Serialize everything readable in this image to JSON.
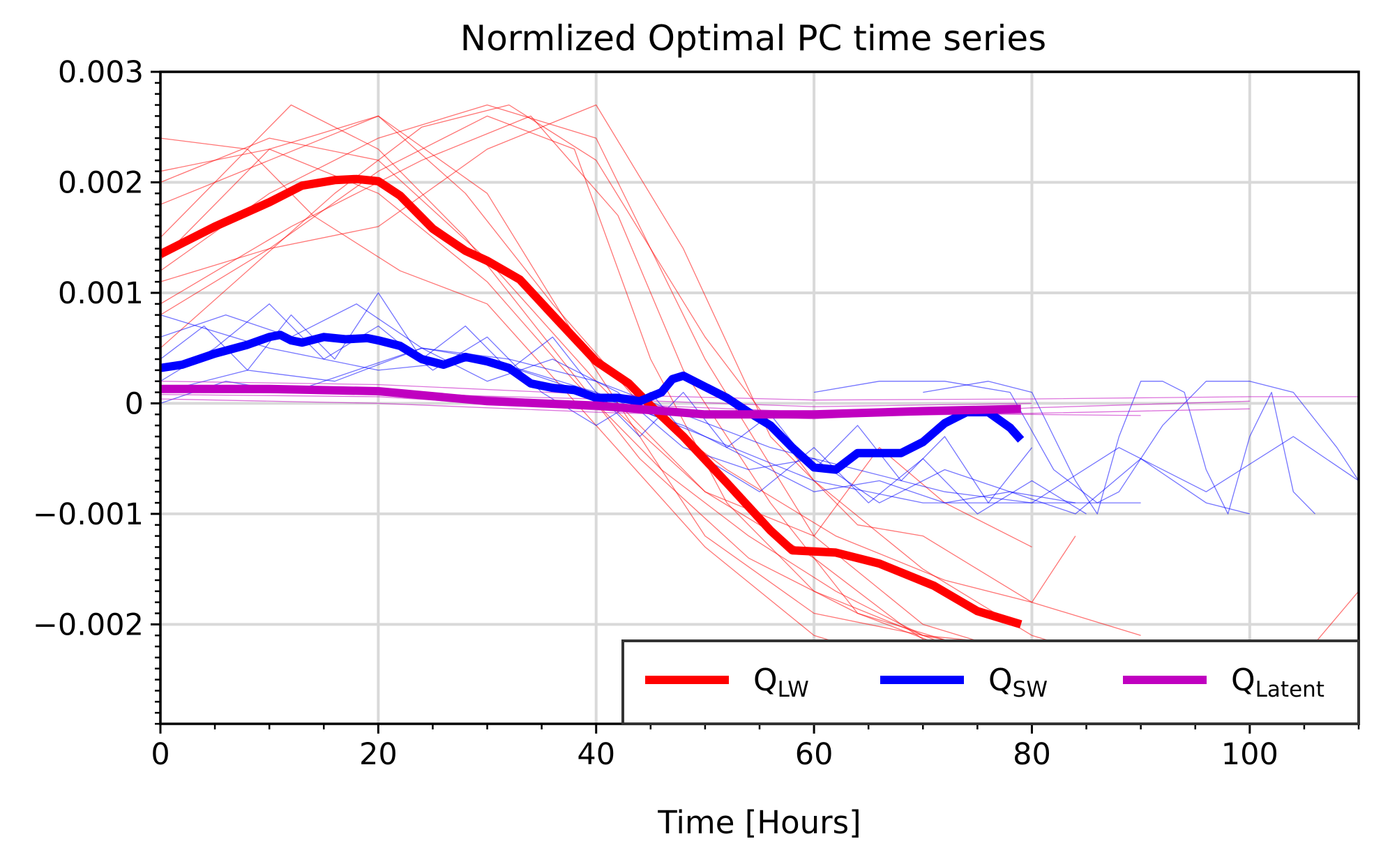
{
  "chart_data": {
    "type": "line",
    "title": "Normlized Optimal PC time series",
    "xlabel": "Time [Hours]",
    "ylabel": "",
    "xlim": [
      0,
      110
    ],
    "ylim": [
      -0.0029,
      0.003
    ],
    "xticks": [
      0,
      20,
      40,
      60,
      80,
      100
    ],
    "xtick_labels": [
      "0",
      "20",
      "40",
      "60",
      "80",
      "100"
    ],
    "yticks": [
      0.003,
      0.002,
      0.001,
      0,
      -0.001,
      -0.002
    ],
    "ytick_labels": [
      "0.003",
      "0.002",
      "0.001",
      "0",
      "−0.001",
      "−0.002"
    ],
    "grid": true,
    "legend_position": "lower-right",
    "series": [
      {
        "name": "QLW",
        "label_main": "Q",
        "label_sub": "LW",
        "color": "#ff0000",
        "x": [
          0,
          5,
          10,
          13,
          16,
          18,
          20,
          22,
          25,
          28,
          30,
          33,
          36,
          40,
          43,
          45,
          48,
          52,
          56,
          58,
          62,
          66,
          71,
          75,
          79
        ],
        "y": [
          0.00135,
          0.0016,
          0.00182,
          0.00197,
          0.00202,
          0.00203,
          0.00201,
          0.00188,
          0.00158,
          0.00138,
          0.00129,
          0.00112,
          0.0008,
          0.00038,
          0.00018,
          -2e-05,
          -0.0003,
          -0.00072,
          -0.00115,
          -0.00133,
          -0.00135,
          -0.00145,
          -0.00165,
          -0.00188,
          -0.002
        ]
      },
      {
        "name": "QSW",
        "label_main": "Q",
        "label_sub": "SW",
        "color": "#0000ff",
        "x": [
          0,
          2,
          5,
          8,
          10,
          11,
          12,
          13,
          15,
          17,
          19,
          20,
          22,
          24,
          26,
          28,
          30,
          32,
          34,
          36,
          38,
          40,
          42,
          44,
          46,
          47,
          48,
          50,
          52,
          54,
          56,
          58,
          60,
          62,
          64,
          66,
          68,
          70,
          72,
          74,
          76,
          78,
          79
        ],
        "y": [
          0.00032,
          0.00035,
          0.00045,
          0.00053,
          0.0006,
          0.00062,
          0.00057,
          0.00055,
          0.0006,
          0.00058,
          0.00059,
          0.00057,
          0.00052,
          0.0004,
          0.00035,
          0.00042,
          0.00038,
          0.00032,
          0.00018,
          0.00014,
          0.00012,
          5e-05,
          5e-05,
          2e-05,
          0.0001,
          0.00022,
          0.00025,
          0.00015,
          5e-05,
          -8e-05,
          -0.0002,
          -0.0004,
          -0.00058,
          -0.0006,
          -0.00045,
          -0.00045,
          -0.00045,
          -0.00035,
          -0.00018,
          -8e-05,
          -8e-05,
          -0.00022,
          -0.00033
        ]
      },
      {
        "name": "QLatent",
        "label_main": "Q",
        "label_sub": "Latent",
        "color": "#c000c0",
        "x": [
          0,
          10,
          20,
          30,
          40,
          50,
          60,
          70,
          79
        ],
        "y": [
          0.00013,
          0.00013,
          0.00011,
          2e-05,
          -2e-05,
          -0.0001,
          -0.0001,
          -7e-05,
          -5e-05
        ]
      }
    ],
    "ensemble_members": {
      "QLW": [
        {
          "x": [
            0,
            10,
            20,
            30,
            40,
            50,
            60,
            70,
            80
          ],
          "y": [
            0.0018,
            0.0022,
            0.0026,
            0.0019,
            0.0003,
            -0.0012,
            -0.0019,
            -0.0021,
            -0.0022
          ]
        },
        {
          "x": [
            0,
            10,
            20,
            30,
            40,
            50,
            60,
            70,
            80,
            86
          ],
          "y": [
            0.0012,
            0.0019,
            0.0024,
            0.0027,
            0.0024,
            0.0004,
            -0.0012,
            -0.002,
            -0.0023,
            -0.0023
          ]
        },
        {
          "x": [
            0,
            8,
            14,
            22,
            30,
            40,
            50,
            60,
            70,
            78
          ],
          "y": [
            0.0024,
            0.0023,
            0.0017,
            0.0012,
            0.0009,
            -0.0002,
            -0.0013,
            -0.0021,
            -0.0024,
            -0.0025
          ]
        },
        {
          "x": [
            0,
            10,
            20,
            30,
            38,
            45,
            52,
            60,
            70,
            80,
            90
          ],
          "y": [
            0.0008,
            0.0014,
            0.0021,
            0.0026,
            0.0023,
            0.0004,
            -0.0009,
            -0.0017,
            -0.0021,
            -0.0023,
            -0.0024
          ]
        },
        {
          "x": [
            0,
            6,
            12,
            20,
            28,
            36,
            44,
            54,
            64,
            74,
            82
          ],
          "y": [
            0.0015,
            0.0021,
            0.0027,
            0.0023,
            0.0015,
            0.0005,
            -0.0005,
            -0.0014,
            -0.0019,
            -0.0022,
            -0.0022
          ]
        },
        {
          "x": [
            0,
            10,
            20,
            30,
            40,
            50,
            60,
            66,
            72,
            80
          ],
          "y": [
            0.002,
            0.0024,
            0.0022,
            0.0013,
            0.0002,
            -0.0008,
            -0.0012,
            -0.0004,
            -0.0009,
            -0.0013
          ]
        },
        {
          "x": [
            0,
            12,
            24,
            34,
            42,
            48,
            56,
            64,
            72,
            82
          ],
          "y": [
            0.0009,
            0.0016,
            0.0022,
            0.0026,
            0.0017,
            0.0003,
            -0.0009,
            -0.0019,
            -0.0022,
            -0.0024
          ]
        },
        {
          "x": [
            0,
            10,
            20,
            28,
            36,
            44,
            52,
            62,
            72,
            80,
            84
          ],
          "y": [
            0.0013,
            0.0023,
            0.0026,
            0.0019,
            0.0009,
            0.0,
            -0.0006,
            -0.0012,
            -0.0016,
            -0.0018,
            -0.0012
          ]
        },
        {
          "x": [
            0,
            10,
            20,
            30,
            40,
            48,
            56,
            64,
            70,
            80,
            90
          ],
          "y": [
            0.0011,
            0.0014,
            0.0016,
            0.0023,
            0.0027,
            0.0014,
            -0.0003,
            -0.0011,
            -0.0012,
            -0.0018,
            -0.0021
          ]
        },
        {
          "x": [
            0,
            8,
            16,
            24,
            32,
            40,
            50,
            60,
            70,
            80,
            90,
            100
          ],
          "y": [
            0.0005,
            0.0012,
            0.0019,
            0.0025,
            0.0027,
            0.0022,
            0.0006,
            -0.0007,
            -0.0015,
            -0.0021,
            -0.0024,
            -0.0024
          ]
        },
        {
          "x": [
            0,
            10,
            20,
            30,
            38,
            46,
            54,
            62,
            70,
            78
          ],
          "y": [
            0.0021,
            0.0023,
            0.0019,
            0.0011,
            0.0002,
            -0.0006,
            -0.0012,
            -0.0017,
            -0.0021,
            -0.0024
          ]
        },
        {
          "x": [
            40,
            50,
            60,
            68,
            74,
            80,
            88,
            96,
            104,
            110
          ],
          "y": [
            0.0001,
            -0.0008,
            -0.0014,
            -0.002,
            -0.0024,
            -0.0024,
            -0.0025,
            -0.0024,
            -0.0024,
            -0.0017
          ]
        }
      ],
      "QSW": [
        {
          "x": [
            0,
            6,
            12,
            18,
            24,
            30,
            36,
            42,
            48,
            54,
            60,
            66,
            72,
            78,
            84
          ],
          "y": [
            0.0006,
            0.0008,
            0.0006,
            0.0009,
            0.0005,
            0.0004,
            0.0002,
            0.0,
            -0.0002,
            -0.0005,
            -0.0008,
            -0.0007,
            -0.0009,
            -0.0008,
            -0.0009
          ]
        },
        {
          "x": [
            0,
            5,
            10,
            15,
            20,
            25,
            30,
            35,
            40,
            45,
            50,
            55,
            60,
            65,
            70,
            75,
            80,
            85
          ],
          "y": [
            0.0002,
            0.0005,
            0.0009,
            0.0004,
            0.0007,
            0.0003,
            0.0006,
            0.0001,
            -0.0002,
            0.0001,
            -0.0005,
            -0.0008,
            -0.0004,
            -0.0009,
            -0.0005,
            -0.001,
            -0.0007,
            -0.001
          ]
        },
        {
          "x": [
            0,
            4,
            8,
            12,
            16,
            20,
            24,
            28,
            32,
            36,
            40,
            44,
            48,
            52,
            56,
            60,
            64,
            68,
            72,
            76,
            80
          ],
          "y": [
            0.0004,
            0.0007,
            0.0003,
            0.0008,
            0.0004,
            0.001,
            0.0004,
            0.0007,
            0.0003,
            0.0006,
            0.0001,
            -0.0003,
            0.0001,
            -0.0004,
            -0.0001,
            -0.0006,
            -0.0002,
            -0.0007,
            -0.0003,
            -0.0009,
            -0.0004
          ]
        },
        {
          "x": [
            0,
            8,
            16,
            24,
            32,
            40,
            48,
            56,
            64,
            72,
            80,
            88,
            96,
            104,
            110
          ],
          "y": [
            0.0001,
            0.0003,
            0.0002,
            0.0005,
            0.0004,
            0.0002,
            -0.0001,
            -0.0004,
            -0.0006,
            -0.0008,
            -0.0009,
            -0.0004,
            -0.0008,
            -0.0003,
            -0.0007
          ]
        },
        {
          "x": [
            60,
            66,
            72,
            78,
            82,
            86,
            88,
            92,
            96,
            100,
            104,
            108,
            110
          ],
          "y": [
            0.0001,
            0.0002,
            0.0002,
            0.0001,
            -0.0006,
            -0.0009,
            -0.0008,
            -0.0002,
            0.0002,
            0.0002,
            0.0001,
            -0.0004,
            -0.0007
          ]
        },
        {
          "x": [
            70,
            76,
            80,
            84,
            86,
            88,
            90,
            92,
            94,
            96,
            98,
            100,
            102,
            104,
            106
          ],
          "y": [
            0.0001,
            0.0002,
            0.0001,
            -0.0007,
            -0.001,
            -0.0003,
            0.0002,
            0.0002,
            0.0001,
            -0.0006,
            -0.001,
            -0.0003,
            0.0001,
            -0.0008,
            -0.001
          ]
        },
        {
          "x": [
            0,
            10,
            20,
            30,
            40,
            50,
            60,
            70,
            80,
            90
          ],
          "y": [
            0.0008,
            0.0005,
            0.0003,
            0.0004,
            0.0001,
            -0.0003,
            -0.0007,
            -0.0009,
            -0.0009,
            -0.0009
          ]
        },
        {
          "x": [
            0,
            6,
            12,
            18,
            24,
            30,
            36,
            42,
            48,
            54,
            60,
            66,
            72,
            78,
            84,
            90,
            96,
            100
          ],
          "y": [
            0.0,
            0.0002,
            0.0001,
            0.0003,
            0.0005,
            0.0002,
            0.0004,
            0.0001,
            -0.0004,
            -0.0006,
            -0.0005,
            -0.0009,
            -0.0006,
            -0.0008,
            -0.001,
            -0.0005,
            -0.0009,
            -0.001
          ]
        }
      ],
      "QLatent": [
        {
          "x": [
            0,
            20,
            40,
            60,
            80,
            100,
            110
          ],
          "y": [
            0.0002,
            0.00017,
            8e-05,
            3e-05,
            4e-05,
            6e-05,
            6e-05
          ]
        },
        {
          "x": [
            0,
            20,
            40,
            60,
            80,
            100
          ],
          "y": [
            8e-05,
            6e-05,
            -6e-05,
            -0.00012,
            -9e-05,
            -5e-05
          ]
        },
        {
          "x": [
            0,
            20,
            40,
            60,
            80,
            90
          ],
          "y": [
            0.00015,
            0.00012,
            0.0,
            -8e-05,
            -0.0001,
            -0.00011
          ]
        },
        {
          "x": [
            0,
            20,
            40,
            60,
            80,
            100
          ],
          "y": [
            4e-05,
            0.0,
            -8e-05,
            -0.00014,
            -4e-05,
            2e-05
          ]
        },
        {
          "x": [
            0,
            20,
            40,
            60,
            80
          ],
          "y": [
            0.0001,
            9e-05,
            4e-05,
            -3e-05,
            0.0
          ]
        }
      ]
    }
  }
}
